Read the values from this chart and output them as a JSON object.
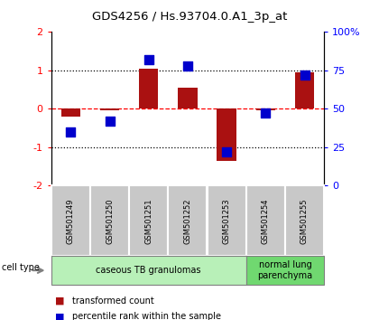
{
  "title": "GDS4256 / Hs.93704.0.A1_3p_at",
  "samples": [
    "GSM501249",
    "GSM501250",
    "GSM501251",
    "GSM501252",
    "GSM501253",
    "GSM501254",
    "GSM501255"
  ],
  "transformed_count": [
    -0.2,
    -0.05,
    1.05,
    0.55,
    -1.35,
    -0.05,
    0.95
  ],
  "percentile_rank": [
    35,
    42,
    82,
    78,
    22,
    47,
    72
  ],
  "ylim_left": [
    -2,
    2
  ],
  "ylim_right": [
    0,
    100
  ],
  "yticks_left": [
    -2,
    -1,
    0,
    1,
    2
  ],
  "yticks_right": [
    0,
    25,
    50,
    75,
    100
  ],
  "ytick_labels_right": [
    "0",
    "25",
    "50",
    "75",
    "100%"
  ],
  "cell_type_groups": [
    {
      "label": "caseous TB granulomas",
      "start": 0,
      "end": 5,
      "color": "#b8f0b8"
    },
    {
      "label": "normal lung\nparenchyma",
      "start": 5,
      "end": 7,
      "color": "#70d870"
    }
  ],
  "bar_color": "#aa1111",
  "dot_color": "#0000cc",
  "bar_width": 0.5,
  "dot_size": 55,
  "legend_bar_label": "transformed count",
  "legend_dot_label": "percentile rank within the sample",
  "cell_type_label": "cell type",
  "tick_box_color": "#c8c8c8"
}
